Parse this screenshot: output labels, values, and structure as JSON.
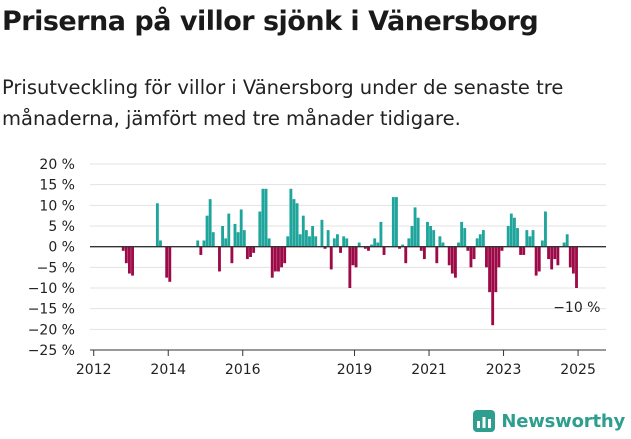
{
  "title": "Priserna på villor sjönk i Vänersborg",
  "subtitle": "Prisutveckling för villor i Vänersborg under de senaste tre månaderna, jämfört med tre månader tidigare.",
  "brand": {
    "name": "Newsworthy",
    "icon": "newsworthy-logo-icon",
    "color": "#2e9e8e"
  },
  "colors": {
    "positive": "#1fa59b",
    "negative": "#9c0a47"
  },
  "chart_data": {
    "type": "bar",
    "title": "Priserna på villor sjönk i Vänersborg",
    "xlabel": "",
    "ylabel": "",
    "ylim": [
      -25,
      20
    ],
    "yticks": [
      20,
      15,
      10,
      5,
      0,
      -5,
      -10,
      -15,
      -20,
      -25
    ],
    "ytick_labels": [
      "20 %",
      "15 %",
      "10 %",
      "5 %",
      "0 %",
      "−5 %",
      "−10 %",
      "−15 %",
      "−20 %",
      "−25 %"
    ],
    "xticks": [
      2012,
      2014,
      2016,
      2019,
      2021,
      2023,
      2025
    ],
    "xtick_labels": [
      "2012",
      "2014",
      "2016",
      "2019",
      "2021",
      "2023",
      "2025"
    ],
    "grid": true,
    "last_value_label": "−10 %",
    "series": [
      {
        "values": [
          {
            "x": "2012-10",
            "y": -1
          },
          {
            "x": "2012-11",
            "y": -4
          },
          {
            "x": "2012-12",
            "y": -6.5
          },
          {
            "x": "2013-01",
            "y": -7
          },
          {
            "x": "2013-09",
            "y": 10.5
          },
          {
            "x": "2013-10",
            "y": 1.5
          },
          {
            "x": "2013-12",
            "y": -7.5
          },
          {
            "x": "2014-01",
            "y": -8.5
          },
          {
            "x": "2014-10",
            "y": 1.5
          },
          {
            "x": "2014-11",
            "y": -2
          },
          {
            "x": "2014-12",
            "y": 1.5
          },
          {
            "x": "2015-01",
            "y": 7.5
          },
          {
            "x": "2015-02",
            "y": 11.5
          },
          {
            "x": "2015-03",
            "y": 3.5
          },
          {
            "x": "2015-05",
            "y": -6
          },
          {
            "x": "2015-06",
            "y": 5
          },
          {
            "x": "2015-07",
            "y": 2
          },
          {
            "x": "2015-08",
            "y": 8
          },
          {
            "x": "2015-09",
            "y": -4
          },
          {
            "x": "2015-10",
            "y": 5.5
          },
          {
            "x": "2015-11",
            "y": 3.5
          },
          {
            "x": "2015-12",
            "y": 9
          },
          {
            "x": "2016-01",
            "y": 4
          },
          {
            "x": "2016-02",
            "y": -3
          },
          {
            "x": "2016-03",
            "y": -2.5
          },
          {
            "x": "2016-04",
            "y": -1.5
          },
          {
            "x": "2016-06",
            "y": 8.5
          },
          {
            "x": "2016-07",
            "y": 14
          },
          {
            "x": "2016-08",
            "y": 14
          },
          {
            "x": "2016-09",
            "y": 2
          },
          {
            "x": "2016-10",
            "y": -7.5
          },
          {
            "x": "2016-11",
            "y": -6
          },
          {
            "x": "2016-12",
            "y": -6
          },
          {
            "x": "2017-01",
            "y": -5
          },
          {
            "x": "2017-02",
            "y": -4
          },
          {
            "x": "2017-03",
            "y": 2.5
          },
          {
            "x": "2017-04",
            "y": 14
          },
          {
            "x": "2017-05",
            "y": 11.5
          },
          {
            "x": "2017-06",
            "y": 10.5
          },
          {
            "x": "2017-07",
            "y": 3
          },
          {
            "x": "2017-08",
            "y": 7.5
          },
          {
            "x": "2017-09",
            "y": 4
          },
          {
            "x": "2017-10",
            "y": 2.5
          },
          {
            "x": "2017-11",
            "y": 5
          },
          {
            "x": "2017-12",
            "y": 2.5
          },
          {
            "x": "2018-02",
            "y": 6.5
          },
          {
            "x": "2018-03",
            "y": -0.5
          },
          {
            "x": "2018-04",
            "y": 4
          },
          {
            "x": "2018-05",
            "y": -5.5
          },
          {
            "x": "2018-06",
            "y": 2
          },
          {
            "x": "2018-07",
            "y": 3
          },
          {
            "x": "2018-08",
            "y": -1.5
          },
          {
            "x": "2018-09",
            "y": 2.5
          },
          {
            "x": "2018-10",
            "y": 2
          },
          {
            "x": "2018-11",
            "y": -10
          },
          {
            "x": "2018-12",
            "y": -4.5
          },
          {
            "x": "2019-01",
            "y": -5
          },
          {
            "x": "2019-02",
            "y": 1
          },
          {
            "x": "2019-04",
            "y": -0.5
          },
          {
            "x": "2019-05",
            "y": -1
          },
          {
            "x": "2019-06",
            "y": 0.5
          },
          {
            "x": "2019-07",
            "y": 2
          },
          {
            "x": "2019-08",
            "y": 1
          },
          {
            "x": "2019-09",
            "y": 6
          },
          {
            "x": "2019-10",
            "y": -2
          },
          {
            "x": "2020-01",
            "y": 12
          },
          {
            "x": "2020-02",
            "y": 12
          },
          {
            "x": "2020-03",
            "y": -0.5
          },
          {
            "x": "2020-04",
            "y": 0.5
          },
          {
            "x": "2020-05",
            "y": -4
          },
          {
            "x": "2020-06",
            "y": 2
          },
          {
            "x": "2020-07",
            "y": 5
          },
          {
            "x": "2020-08",
            "y": 9.5
          },
          {
            "x": "2020-09",
            "y": 7
          },
          {
            "x": "2020-10",
            "y": -1
          },
          {
            "x": "2020-11",
            "y": -3
          },
          {
            "x": "2020-12",
            "y": 6
          },
          {
            "x": "2021-01",
            "y": 5
          },
          {
            "x": "2021-02",
            "y": 4
          },
          {
            "x": "2021-03",
            "y": -4
          },
          {
            "x": "2021-04",
            "y": 2.5
          },
          {
            "x": "2021-05",
            "y": 1
          },
          {
            "x": "2021-07",
            "y": -4.5
          },
          {
            "x": "2021-08",
            "y": -6.5
          },
          {
            "x": "2021-09",
            "y": -7.5
          },
          {
            "x": "2021-10",
            "y": 1
          },
          {
            "x": "2021-11",
            "y": 6
          },
          {
            "x": "2021-12",
            "y": 4.5
          },
          {
            "x": "2022-01",
            "y": -1
          },
          {
            "x": "2022-02",
            "y": -5
          },
          {
            "x": "2022-03",
            "y": -3
          },
          {
            "x": "2022-04",
            "y": 2
          },
          {
            "x": "2022-05",
            "y": 3
          },
          {
            "x": "2022-06",
            "y": 4
          },
          {
            "x": "2022-07",
            "y": -5
          },
          {
            "x": "2022-08",
            "y": -11
          },
          {
            "x": "2022-09",
            "y": -19
          },
          {
            "x": "2022-10",
            "y": -11
          },
          {
            "x": "2022-11",
            "y": -5
          },
          {
            "x": "2022-12",
            "y": -1
          },
          {
            "x": "2023-02",
            "y": 5
          },
          {
            "x": "2023-03",
            "y": 8
          },
          {
            "x": "2023-04",
            "y": 7
          },
          {
            "x": "2023-05",
            "y": 4.5
          },
          {
            "x": "2023-06",
            "y": -2
          },
          {
            "x": "2023-07",
            "y": -2
          },
          {
            "x": "2023-08",
            "y": 4
          },
          {
            "x": "2023-09",
            "y": 2.5
          },
          {
            "x": "2023-10",
            "y": 4
          },
          {
            "x": "2023-11",
            "y": -7
          },
          {
            "x": "2023-12",
            "y": -6
          },
          {
            "x": "2024-01",
            "y": 1.5
          },
          {
            "x": "2024-02",
            "y": 8.5
          },
          {
            "x": "2024-03",
            "y": -3
          },
          {
            "x": "2024-04",
            "y": -5.5
          },
          {
            "x": "2024-05",
            "y": -3
          },
          {
            "x": "2024-06",
            "y": -4.5
          },
          {
            "x": "2024-08",
            "y": 1
          },
          {
            "x": "2024-09",
            "y": 3
          },
          {
            "x": "2024-10",
            "y": -5
          },
          {
            "x": "2024-11",
            "y": -6.5
          },
          {
            "x": "2024-12",
            "y": -10
          }
        ]
      }
    ]
  }
}
